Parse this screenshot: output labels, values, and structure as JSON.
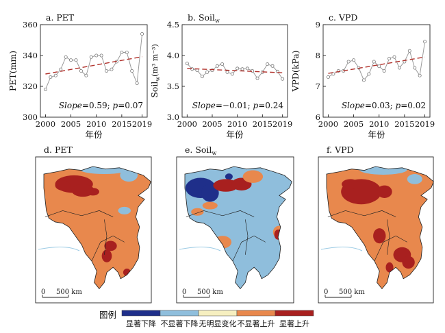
{
  "chart_data": [
    {
      "type": "line",
      "panel": "a",
      "title": "a. PET",
      "xlabel": "年份",
      "ylabel": "PET(mm)",
      "x": [
        2000,
        2001,
        2002,
        2003,
        2004,
        2005,
        2006,
        2007,
        2008,
        2009,
        2010,
        2011,
        2012,
        2013,
        2014,
        2015,
        2016,
        2017,
        2018,
        2019
      ],
      "values": [
        318,
        326,
        327,
        331,
        339,
        337,
        337,
        330,
        327,
        339,
        340,
        340,
        330,
        331,
        336,
        342,
        342,
        330,
        322,
        354
      ],
      "trend": [
        328,
        339.2
      ],
      "xlim": [
        1999,
        2020
      ],
      "ylim": [
        300,
        360
      ],
      "yticks": [
        300,
        320,
        340,
        360
      ],
      "xticks": [
        2000,
        2005,
        2010,
        2015,
        2019
      ],
      "slope_text": "Slope",
      "stat_text": "=0.59; ",
      "p_text": "p",
      "p_val": "=0.07",
      "colors": {
        "series": "#9a9a9a",
        "trend": "#b0302a"
      }
    },
    {
      "type": "line",
      "panel": "b",
      "title": "b. Soilw",
      "title_main": "b. Soil",
      "title_sub": "w",
      "xlabel": "年份",
      "ylabel": "Soilw(m³ m⁻³)",
      "ylabel_main": "Soil",
      "ylabel_sub": "w",
      "ylabel_unit": "(m³ m⁻³)",
      "x": [
        2000,
        2001,
        2002,
        2003,
        2004,
        2005,
        2006,
        2007,
        2008,
        2009,
        2010,
        2011,
        2012,
        2013,
        2014,
        2015,
        2016,
        2017,
        2018,
        2019
      ],
      "values": [
        3.87,
        3.78,
        3.76,
        3.66,
        3.73,
        3.76,
        3.83,
        3.86,
        3.73,
        3.7,
        3.79,
        3.78,
        3.79,
        3.75,
        3.63,
        3.73,
        3.86,
        3.83,
        3.74,
        3.62
      ],
      "trend": [
        3.79,
        3.72
      ],
      "xlim": [
        1999,
        2020
      ],
      "ylim": [
        3.0,
        4.5
      ],
      "yticks": [
        3.0,
        3.5,
        4.0,
        4.5
      ],
      "ytick_labels": [
        "3.0",
        "3.5",
        "4.0",
        "4.5"
      ],
      "xticks": [
        2000,
        2005,
        2010,
        2015,
        2019
      ],
      "slope_text": "Slope",
      "stat_text": "=−0.01; ",
      "p_text": "p",
      "p_val": "=0.24",
      "colors": {
        "series": "#9a9a9a",
        "trend": "#b0302a"
      }
    },
    {
      "type": "line",
      "panel": "c",
      "title": "c. VPD",
      "xlabel": "年份",
      "ylabel": "VPD(kPa)",
      "x": [
        2000,
        2001,
        2002,
        2003,
        2004,
        2005,
        2006,
        2007,
        2008,
        2009,
        2010,
        2011,
        2012,
        2013,
        2014,
        2015,
        2016,
        2017,
        2018,
        2019
      ],
      "values": [
        7.3,
        7.4,
        7.5,
        7.5,
        7.8,
        7.85,
        7.6,
        7.2,
        7.4,
        7.8,
        7.65,
        7.5,
        7.9,
        7.95,
        7.6,
        7.8,
        8.15,
        7.6,
        7.35,
        8.45
      ],
      "trend": [
        7.42,
        7.95
      ],
      "xlim": [
        1999,
        2020
      ],
      "ylim": [
        6,
        9
      ],
      "yticks": [
        6,
        7,
        8,
        9
      ],
      "xticks": [
        2000,
        2005,
        2010,
        2015,
        2019
      ],
      "slope_text": "Slope",
      "stat_text": "=0.03; ",
      "p_text": "p",
      "p_val": "=0.02",
      "colors": {
        "series": "#9a9a9a",
        "trend": "#b0302a"
      }
    }
  ],
  "maps": [
    {
      "title": "d. PET",
      "title_main": "d. PET",
      "title_sub": "",
      "scale_zero": "0",
      "scale_label": "500 km"
    },
    {
      "title": "e. Soilw",
      "title_main": "e. Soil",
      "title_sub": "w",
      "scale_zero": "0",
      "scale_label": "500 km"
    },
    {
      "title": "f. VPD",
      "title_main": "f. VPD",
      "title_sub": "",
      "scale_zero": "0",
      "scale_label": "500 km"
    }
  ],
  "legend": {
    "title": "图例",
    "items": [
      {
        "label": "显著下降",
        "color": "#1f2f8a"
      },
      {
        "label": "不显著下降",
        "color": "#8fbedc"
      },
      {
        "label": "无明显变化",
        "color": "#f6efc0"
      },
      {
        "label": "不显著上升",
        "color": "#e8884d"
      },
      {
        "label": "显著上升",
        "color": "#a8201f"
      }
    ]
  }
}
